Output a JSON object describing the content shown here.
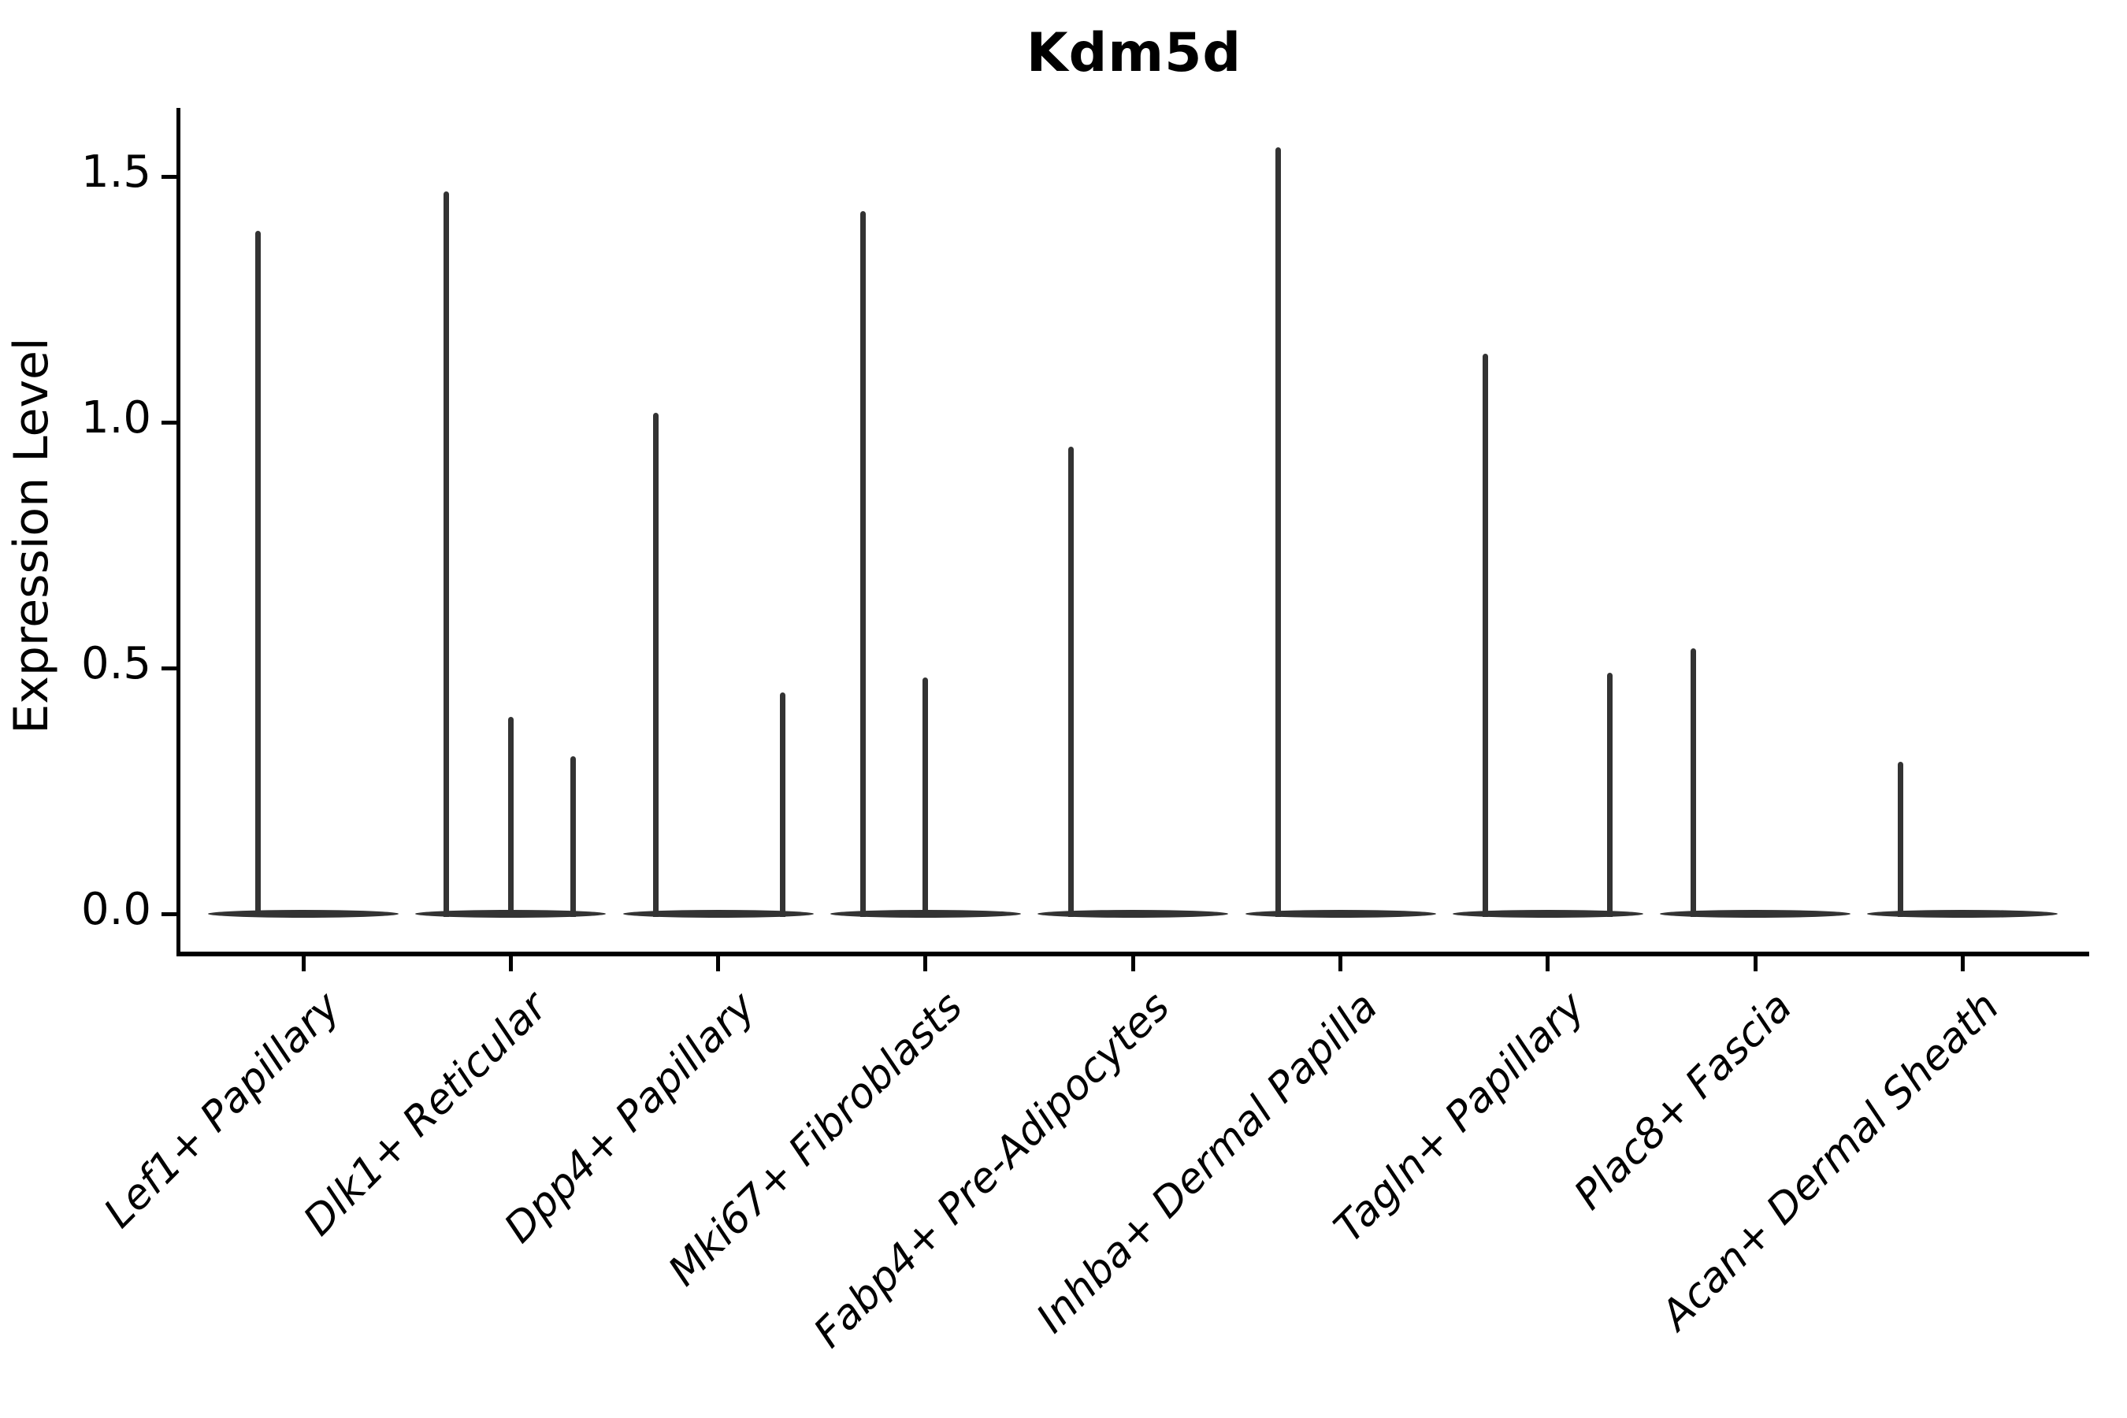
{
  "title": "Kdm5d",
  "ylabel": "Expression Level",
  "colors": {
    "background": "#ffffff",
    "axis": "#000000",
    "text": "#000000",
    "violin": "#333333"
  },
  "chart_data": {
    "type": "violin",
    "title": "Kdm5d",
    "xlabel": "",
    "ylabel": "Expression Level",
    "ylim": [
      -0.08,
      1.65
    ],
    "y_ticks": [
      "0.0",
      "0.5",
      "1.0",
      "1.5"
    ],
    "y_tick_values": [
      0.0,
      0.5,
      1.0,
      1.5
    ],
    "grid": false,
    "legend": "none",
    "categories": [
      "Lef1+ Papillary",
      "Dlk1+ Reticular",
      "Dpp4+ Papillary",
      "Mki67+ Fibroblasts",
      "Fabp4+ Pre-Adipocytes",
      "Inhba+ Dermal Papilla",
      "Tagln+ Papillary",
      "Plac8+ Fascia",
      "Acan+ Dermal Sheath"
    ],
    "description": "Sparse single-cell expression: each cell type shows a wide flat density base at expression 0 with thin vertical density spikes rising to the maximum expression of the few expressing cells.",
    "violins": [
      {
        "label": "Lef1+ Papillary",
        "base_value": 0.0,
        "spikes": [
          {
            "offset_frac": -0.22,
            "max": 1.39
          }
        ]
      },
      {
        "label": "Dlk1+ Reticular",
        "base_value": 0.0,
        "spikes": [
          {
            "offset_frac": -0.31,
            "max": 1.47
          },
          {
            "offset_frac": 0.0,
            "max": 0.4
          },
          {
            "offset_frac": 0.3,
            "max": 0.32
          }
        ]
      },
      {
        "label": "Dpp4+ Papillary",
        "base_value": 0.0,
        "spikes": [
          {
            "offset_frac": -0.3,
            "max": 1.02
          },
          {
            "offset_frac": 0.31,
            "max": 0.45
          }
        ]
      },
      {
        "label": "Mki67+ Fibroblasts",
        "base_value": 0.0,
        "spikes": [
          {
            "offset_frac": -0.3,
            "max": 1.43
          },
          {
            "offset_frac": 0.0,
            "max": 0.48
          }
        ]
      },
      {
        "label": "Fabp4+ Pre-Adipocytes",
        "base_value": 0.0,
        "spikes": [
          {
            "offset_frac": -0.3,
            "max": 0.95
          }
        ]
      },
      {
        "label": "Inhba+ Dermal Papilla",
        "base_value": 0.0,
        "spikes": [
          {
            "offset_frac": -0.3,
            "max": 1.56
          }
        ]
      },
      {
        "label": "Tagln+ Papillary",
        "base_value": 0.0,
        "spikes": [
          {
            "offset_frac": -0.3,
            "max": 1.14
          },
          {
            "offset_frac": 0.3,
            "max": 0.49
          }
        ]
      },
      {
        "label": "Plac8+ Fascia",
        "base_value": 0.0,
        "spikes": [
          {
            "offset_frac": -0.3,
            "max": 0.54
          }
        ]
      },
      {
        "label": "Acan+ Dermal Sheath",
        "base_value": 0.0,
        "spikes": [
          {
            "offset_frac": -0.3,
            "max": 0.31
          }
        ]
      }
    ]
  }
}
